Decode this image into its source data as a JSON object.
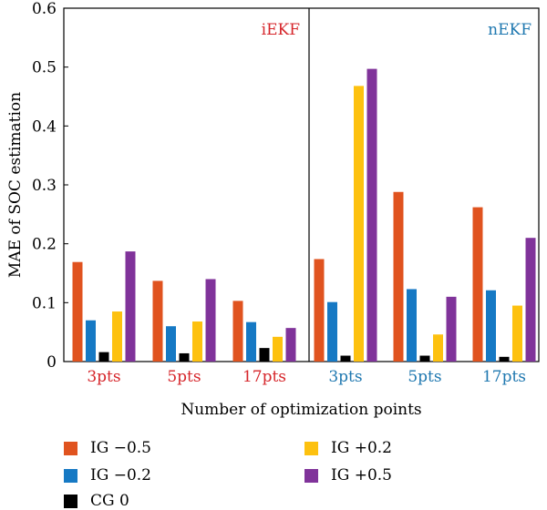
{
  "chart_data": {
    "type": "bar",
    "ylabel": "MAE of SOC estimation",
    "xlabel": "Number of optimization points",
    "ylim": [
      0,
      0.6
    ],
    "yticks": [
      "0",
      "0.1",
      "0.2",
      "0.3",
      "0.4",
      "0.5",
      "0.6"
    ],
    "grid": false,
    "panels": [
      {
        "label": "iEKF",
        "color": "#d6262b",
        "categories": [
          "3pts",
          "5pts",
          "17pts"
        ]
      },
      {
        "label": "nEKF",
        "color": "#1f78b0",
        "categories": [
          "3pts",
          "5pts",
          "17pts"
        ]
      }
    ],
    "series": [
      {
        "name": "IG −0.5",
        "color": "#e0531f",
        "values": [
          0.169,
          0.137,
          0.103,
          0.174,
          0.288,
          0.262
        ]
      },
      {
        "name": "IG −0.2",
        "color": "#1679c4",
        "values": [
          0.07,
          0.06,
          0.067,
          0.101,
          0.123,
          0.121
        ]
      },
      {
        "name": "CG 0",
        "color": "#000000",
        "values": [
          0.016,
          0.014,
          0.023,
          0.01,
          0.01,
          0.008
        ]
      },
      {
        "name": "IG +0.2",
        "color": "#fdc10f",
        "values": [
          0.085,
          0.068,
          0.042,
          0.468,
          0.046,
          0.095
        ]
      },
      {
        "name": "IG +0.5",
        "color": "#80339a",
        "values": [
          0.187,
          0.14,
          0.057,
          0.497,
          0.11,
          0.21
        ]
      }
    ]
  }
}
